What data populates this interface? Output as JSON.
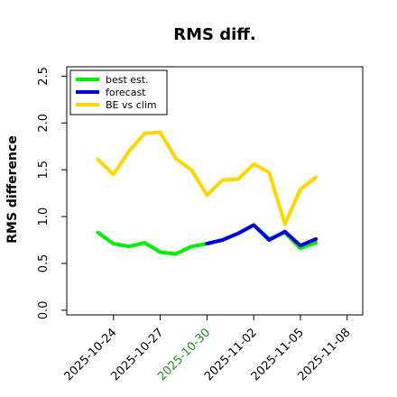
{
  "chart_data": {
    "type": "line",
    "title": "RMS diff.",
    "xlabel": "",
    "ylabel": "RMS difference",
    "ylim": [
      -0.05,
      2.6
    ],
    "xlim": [
      "2025-10-21",
      "2025-11-09"
    ],
    "yticks": [
      "0.0",
      "0.5",
      "1.0",
      "1.5",
      "2.0",
      "2.5"
    ],
    "xticks": [
      {
        "date": "2025-10-24",
        "label": "2025-10-24",
        "color": "#000000"
      },
      {
        "date": "2025-10-27",
        "label": "2025-10-27",
        "color": "#000000"
      },
      {
        "date": "2025-10-30",
        "label": "2025-10-30",
        "color": "#228B22"
      },
      {
        "date": "2025-11-02",
        "label": "2025-11-02",
        "color": "#000000"
      },
      {
        "date": "2025-11-05",
        "label": "2025-11-05",
        "color": "#000000"
      },
      {
        "date": "2025-11-08",
        "label": "2025-11-08",
        "color": "#000000"
      }
    ],
    "legend_position": "top-left",
    "grid": false,
    "series": [
      {
        "name": "best est.",
        "color": "#00ee00",
        "x": [
          "2025-10-23",
          "2025-10-24",
          "2025-10-25",
          "2025-10-26",
          "2025-10-27",
          "2025-10-28",
          "2025-10-29",
          "2025-10-30",
          "2025-10-31",
          "2025-11-01",
          "2025-11-02",
          "2025-11-03",
          "2025-11-04",
          "2025-11-05",
          "2025-11-06"
        ],
        "values": [
          0.83,
          0.71,
          0.68,
          0.72,
          0.62,
          0.6,
          0.68,
          0.71,
          0.75,
          0.82,
          0.91,
          0.76,
          0.83,
          0.66,
          0.72
        ]
      },
      {
        "name": "forecast",
        "color": "#0000dd",
        "x": [
          "2025-10-30",
          "2025-10-31",
          "2025-11-01",
          "2025-11-02",
          "2025-11-03",
          "2025-11-04",
          "2025-11-05",
          "2025-11-06"
        ],
        "values": [
          0.71,
          0.75,
          0.82,
          0.91,
          0.75,
          0.84,
          0.69,
          0.76
        ]
      },
      {
        "name": "BE vs clim",
        "color": "#ffd700",
        "x": [
          "2025-10-23",
          "2025-10-24",
          "2025-10-25",
          "2025-10-26",
          "2025-10-27",
          "2025-10-28",
          "2025-10-29",
          "2025-10-30",
          "2025-10-31",
          "2025-11-01",
          "2025-11-02",
          "2025-11-03",
          "2025-11-04",
          "2025-11-05",
          "2025-11-06"
        ],
        "values": [
          1.61,
          1.45,
          1.7,
          1.89,
          1.9,
          1.62,
          1.5,
          1.23,
          1.39,
          1.4,
          1.56,
          1.47,
          0.92,
          1.29,
          1.42
        ]
      }
    ]
  }
}
